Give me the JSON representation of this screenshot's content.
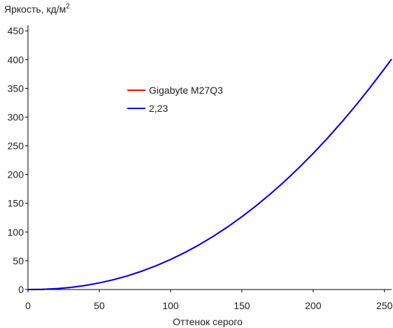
{
  "chart_data": {
    "type": "line",
    "title": "",
    "ylabel": "Яркость, кд/м",
    "ylabel_superscript": "2",
    "xlabel": "Оттенок серого",
    "xlim": [
      0,
      255
    ],
    "ylim": [
      0,
      460
    ],
    "xticks": [
      0,
      50,
      100,
      150,
      200,
      250
    ],
    "yticks": [
      0,
      50,
      100,
      150,
      200,
      250,
      300,
      350,
      400,
      450
    ],
    "grid": false,
    "legend_position": "center-left",
    "series": [
      {
        "name": "Gigabyte M27Q3",
        "color": "#ff0000",
        "x": [
          0,
          10,
          20,
          30,
          40,
          50,
          60,
          70,
          80,
          90,
          100,
          110,
          120,
          130,
          140,
          150,
          160,
          170,
          180,
          190,
          200,
          210,
          220,
          230,
          240,
          250,
          255
        ],
        "y": [
          0,
          0.3,
          1.5,
          3.7,
          7.0,
          11.5,
          17.1,
          24.0,
          32.1,
          41.5,
          52.3,
          64.4,
          77.8,
          92.7,
          108.9,
          126.6,
          145.7,
          166.3,
          188.3,
          211.8,
          236.8,
          263.2,
          291.2,
          320.7,
          351.7,
          384.2,
          401.0
        ]
      },
      {
        "name": "2,23",
        "color": "#0000ff",
        "x": [
          0,
          10,
          20,
          30,
          40,
          50,
          60,
          70,
          80,
          90,
          100,
          110,
          120,
          130,
          140,
          150,
          160,
          170,
          180,
          190,
          200,
          210,
          220,
          230,
          240,
          250,
          255
        ],
        "y": [
          0,
          0.3,
          1.5,
          3.7,
          7.0,
          11.5,
          17.1,
          24.0,
          32.1,
          41.5,
          52.3,
          64.4,
          77.8,
          92.7,
          108.9,
          126.6,
          145.7,
          166.3,
          188.3,
          211.8,
          236.8,
          263.2,
          291.2,
          320.7,
          351.7,
          384.2,
          401.0
        ]
      }
    ]
  }
}
